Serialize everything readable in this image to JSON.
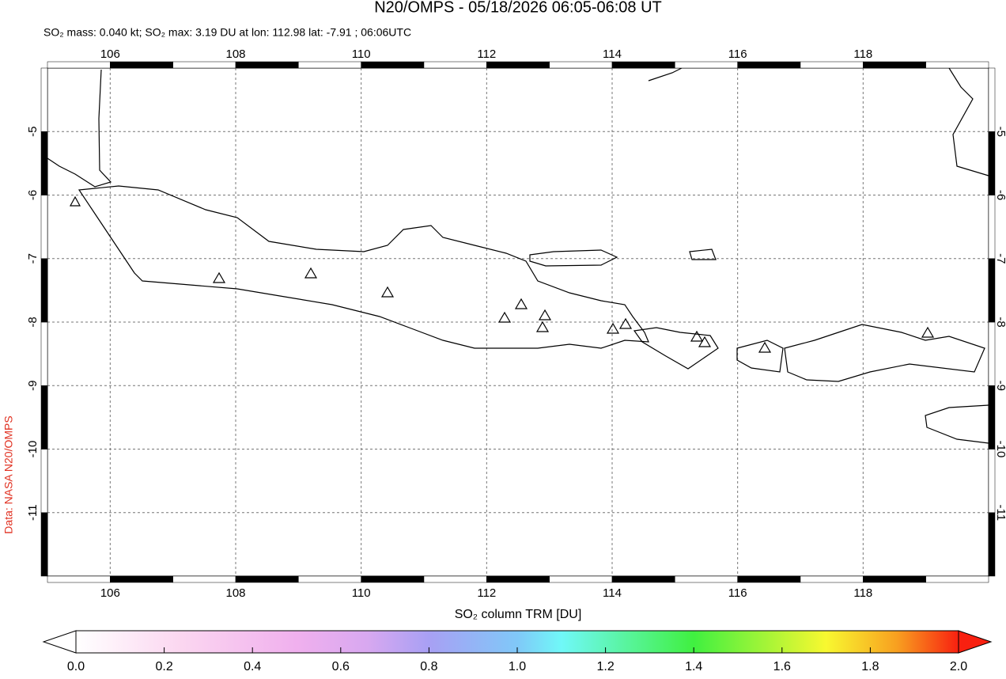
{
  "header": {
    "title": "N20/OMPS - 05/18/2026 06:05-06:08 UT",
    "subtitle": "SO₂ mass: 0.040 kt; SO₂ max: 3.19 DU at lon: 112.98 lat: -7.91 ; 06:06UTC"
  },
  "map": {
    "lon_range": [
      105,
      120
    ],
    "lat_range": [
      -12,
      -4
    ],
    "lon_ticks": [
      106,
      108,
      110,
      112,
      114,
      116,
      118
    ],
    "lat_ticks": [
      -5,
      -6,
      -7,
      -8,
      -9,
      -10,
      -11
    ]
  },
  "colorbar": {
    "label": "SO₂ column TRM [DU]",
    "range": [
      0,
      2
    ],
    "ticks": [
      {
        "value": 0,
        "label": "0.0"
      },
      0.2,
      0.4,
      0.6,
      0.8,
      {
        "value": 1,
        "label": "1.0"
      },
      1.2,
      1.4,
      1.6,
      1.8,
      {
        "value": 2,
        "label": "2.0"
      }
    ]
  },
  "credit": "Data: NASA N20/OMPS"
}
